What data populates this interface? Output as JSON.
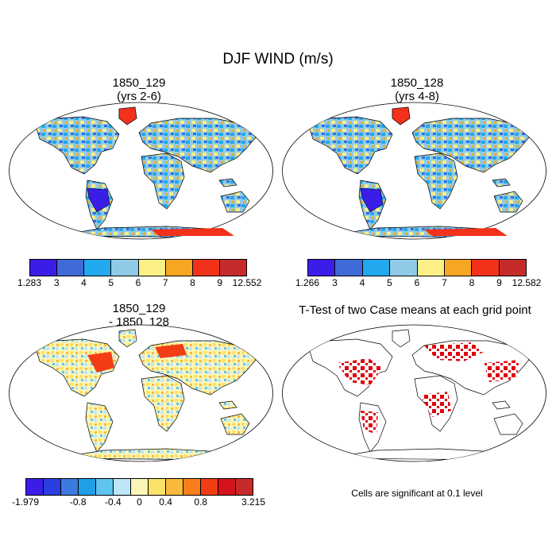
{
  "title": "DJF WIND (m/s)",
  "panels": [
    {
      "id": "case1",
      "title_line1": "1850_129",
      "title_line2": "(yrs 2-6)",
      "colorbar": {
        "labels": [
          "1.283",
          "3",
          "4",
          "5",
          "6",
          "7",
          "8",
          "9",
          "12.552"
        ]
      }
    },
    {
      "id": "case2",
      "title_line1": "1850_128",
      "title_line2": "(yrs 4-8)",
      "colorbar": {
        "labels": [
          "1.266",
          "3",
          "4",
          "5",
          "6",
          "7",
          "8",
          "9",
          "12.582"
        ]
      }
    },
    {
      "id": "difference",
      "title_line1": "1850_129",
      "title_line2": "- 1850_128",
      "colorbar": {
        "labels": [
          "-1.979",
          "-0.8",
          "-0.4",
          "0",
          "0.4",
          "0.8",
          "3.215"
        ]
      }
    },
    {
      "id": "ttest",
      "title_line1": "T-Test of two Case means at each grid point",
      "note": "Cells are significant at 0.1 level"
    }
  ],
  "palettes": {
    "wind": [
      "#3b1de8",
      "#3f6ad8",
      "#21a8ee",
      "#8fcbe6",
      "#fbef86",
      "#f5a623",
      "#f2311a",
      "#c52b2b"
    ],
    "diff": [
      "#3b1de8",
      "#2b3fe0",
      "#3c7ae0",
      "#1f9fe8",
      "#5ec4f2",
      "#bfe6f8",
      "#fbf5b8",
      "#fbe36a",
      "#f9b93a",
      "#f77f1b",
      "#f23c14",
      "#d6121a",
      "#c72a2a"
    ],
    "significant": "#e0000b",
    "coast": "#000000"
  }
}
